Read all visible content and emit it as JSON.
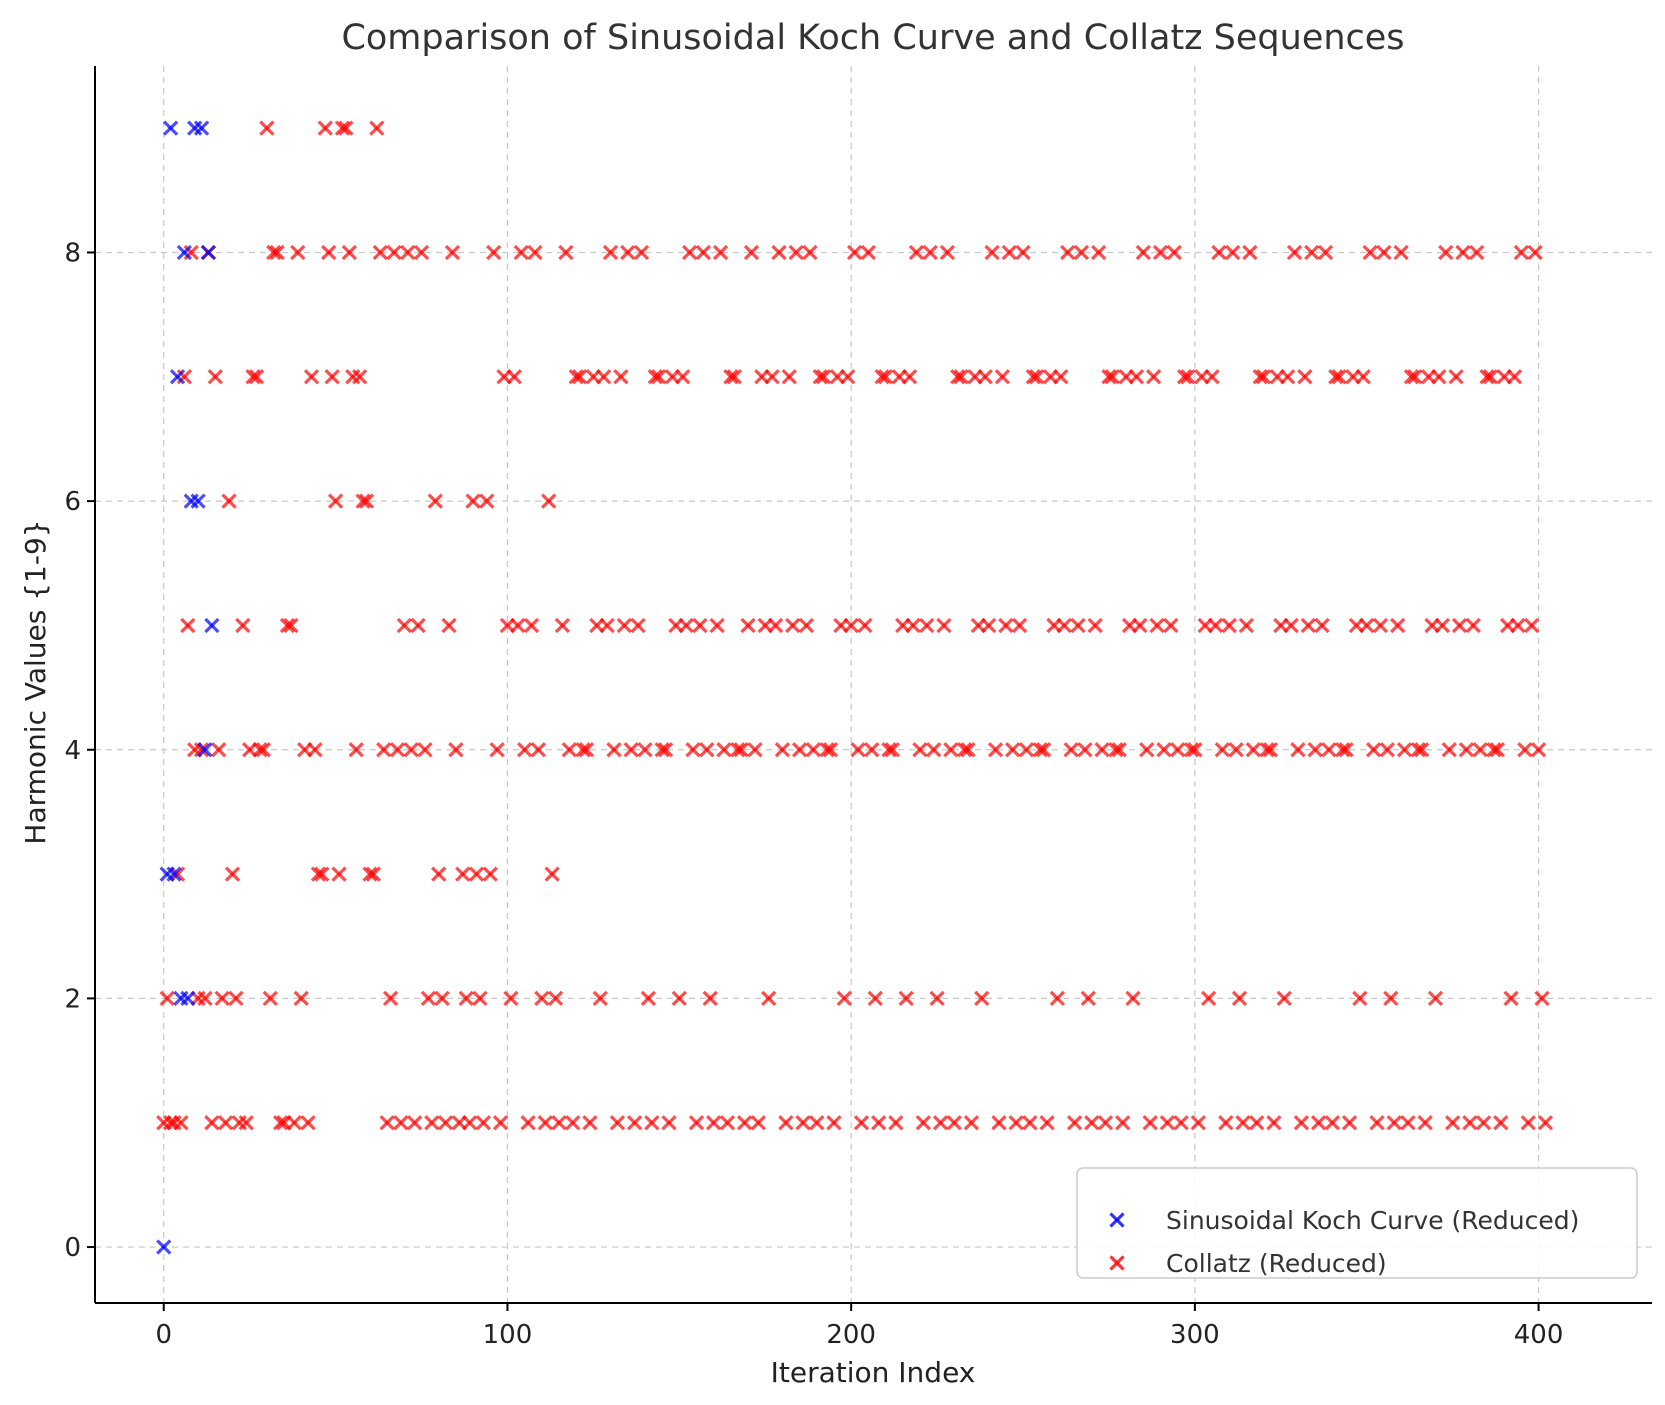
{
  "chart_data": {
    "type": "scatter",
    "title": "Comparison of Sinusoidal Koch Curve and Collatz Sequences",
    "xlabel": "Iteration Index",
    "ylabel": "Harmonic Values {1-9}",
    "xlim": [
      -20,
      433
    ],
    "ylim": [
      -0.45,
      9.5
    ],
    "xticks": [
      0,
      100,
      200,
      300,
      400
    ],
    "yticks": [
      0,
      2,
      4,
      6,
      8
    ],
    "grid": true,
    "legend_position": "lower-right",
    "marker": "x",
    "series": [
      {
        "name": "Sinusoidal Koch Curve (Reduced)",
        "color": "#0000ff",
        "points": [
          [
            0,
            0
          ],
          [
            1,
            3
          ],
          [
            2,
            9
          ],
          [
            3,
            3
          ],
          [
            4,
            7
          ],
          [
            5,
            2
          ],
          [
            6,
            8
          ],
          [
            7,
            2
          ],
          [
            8,
            6
          ],
          [
            9,
            9
          ],
          [
            10,
            6
          ],
          [
            11,
            9
          ],
          [
            12,
            4
          ],
          [
            13,
            8
          ],
          [
            14,
            5
          ]
        ]
      },
      {
        "name": "Collatz (Reduced)",
        "color": "#ff0000",
        "ys": [
          1,
          2,
          1,
          1,
          3,
          1,
          7,
          5,
          8,
          4,
          2,
          4,
          2,
          8,
          1,
          7,
          4,
          2,
          1,
          6,
          3,
          2,
          1,
          5,
          1,
          4,
          7,
          7,
          4,
          4,
          9,
          2,
          8,
          8,
          1,
          1,
          5,
          5,
          1,
          8,
          2,
          4,
          1,
          7,
          4,
          3,
          3,
          9,
          8,
          7,
          6,
          3,
          9,
          9,
          8,
          7,
          4,
          7,
          6,
          6,
          3,
          3,
          9,
          8,
          4,
          1,
          2,
          8,
          4,
          1,
          5,
          8,
          4,
          1,
          5,
          8,
          4,
          2,
          1,
          6,
          3,
          2,
          1,
          5,
          8,
          4,
          1,
          3,
          2,
          1,
          6,
          3,
          2,
          1,
          6,
          3,
          8,
          4,
          1,
          7,
          5,
          2,
          7,
          5,
          8,
          4,
          1,
          5,
          8,
          4,
          2,
          1,
          6,
          3,
          2,
          1,
          5,
          8,
          4,
          1,
          7,
          7,
          4,
          4,
          1,
          7,
          5,
          2,
          7,
          5,
          8,
          4,
          1,
          7,
          5,
          8,
          4,
          1,
          5,
          8,
          4,
          2,
          1,
          7,
          7,
          4,
          4,
          1,
          7,
          5,
          2,
          7,
          5,
          8,
          4,
          1,
          5,
          8,
          4,
          2,
          1,
          5,
          8,
          4,
          1,
          7,
          7,
          4,
          4,
          1,
          5,
          8,
          4,
          1,
          7,
          5,
          2,
          7,
          5,
          8,
          4,
          1,
          7,
          5,
          8,
          4,
          1,
          5,
          8,
          4,
          1,
          7,
          7,
          4,
          4,
          1,
          7,
          5,
          2,
          7,
          5,
          8,
          4,
          1,
          5,
          8,
          4,
          2,
          1,
          7,
          7,
          4,
          4,
          1,
          7,
          5,
          2,
          7,
          5,
          8,
          4,
          1,
          5,
          8,
          4,
          2,
          1,
          5,
          8,
          4,
          1,
          7,
          7,
          4,
          4,
          1,
          7,
          5,
          2,
          7,
          5,
          8,
          4,
          1,
          7,
          5,
          8,
          4,
          1,
          5,
          8,
          4,
          1,
          7,
          7,
          4,
          4,
          1,
          7,
          5,
          2,
          7,
          5,
          8,
          4,
          1,
          5,
          8,
          4,
          2,
          1,
          5,
          8,
          4,
          1,
          7,
          7,
          4,
          4,
          1,
          7,
          5,
          2,
          7,
          5,
          8,
          4,
          1,
          7,
          5,
          8,
          4,
          1,
          5,
          8,
          4,
          1,
          7,
          7,
          4,
          4,
          1,
          7,
          5,
          2,
          7,
          5,
          8,
          4,
          1,
          5,
          8,
          4,
          2,
          1,
          5,
          8,
          4,
          1,
          7,
          7,
          4,
          4,
          1,
          7,
          5,
          2,
          7,
          5,
          8,
          4,
          1,
          7,
          5,
          8,
          4,
          1,
          5,
          8,
          4,
          1,
          7,
          7,
          4,
          4,
          1,
          7,
          5,
          2,
          7,
          5,
          8,
          4,
          1,
          5,
          8,
          4,
          2,
          1,
          5,
          8,
          4,
          1,
          7,
          7,
          4,
          4,
          1,
          7,
          5,
          2,
          7,
          5,
          8,
          4,
          1,
          7,
          5,
          8,
          4,
          1,
          5,
          8,
          4,
          1,
          7,
          7,
          4,
          4,
          1,
          7,
          5,
          2,
          7,
          5,
          8,
          4,
          1,
          5,
          8,
          4,
          2,
          1
        ]
      }
    ]
  }
}
